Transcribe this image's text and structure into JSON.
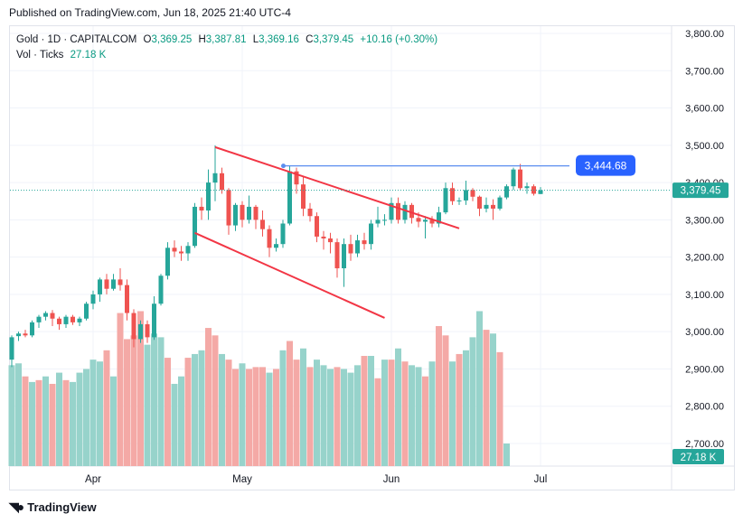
{
  "header": {
    "published": "Published on TradingView.com, Jun 18, 2025 21:40 UTC-4"
  },
  "legend": {
    "symbol": "Gold · 1D · CAPITALCOM",
    "o_label": "O",
    "o_value": "3,369.25",
    "h_label": "H",
    "h_value": "3,387.81",
    "l_label": "L",
    "l_value": "3,369.16",
    "c_label": "C",
    "c_value": "3,379.45",
    "change": "+10.16 (+0.30%)",
    "vol_label": "Vol · Ticks",
    "vol_value": "27.18 K"
  },
  "footer": {
    "brand": "TradingView",
    "logo_icon": "tradingview-logo-icon"
  },
  "colors": {
    "up": "#26a69a",
    "down": "#ef5350",
    "up_vol": "#97d3cb",
    "down_vol": "#f4a9a6",
    "trendline": "#f23645",
    "level_line": "#5b8def",
    "price_badge": "#2962ff",
    "level_badge": "#2962ff",
    "vol_badge": "#26a69a"
  },
  "chart_data": {
    "type": "candlestick",
    "y_axis": {
      "ticks": [
        2700,
        2800,
        2900,
        3000,
        3100,
        3200,
        3300,
        3400,
        3500,
        3600,
        3700,
        3800
      ],
      "tick_labels": [
        "2,700.00",
        "2,800.00",
        "2,900.00",
        "3,000.00",
        "3,100.00",
        "3,200.00",
        "3,300.00",
        "3,400.00",
        "3,500.00",
        "3,600.00",
        "3,700.00",
        "3,800.00"
      ],
      "range": [
        2640,
        3830
      ]
    },
    "x_axis": {
      "labels": [
        "Apr",
        "May",
        "Jun",
        "Jul"
      ],
      "label_bar_index": [
        12,
        34,
        56,
        78
      ]
    },
    "bars_total": 86,
    "last_price": 3379.45,
    "last_price_label": "3,379.45",
    "level": {
      "value": 3444.68,
      "label": "3,444.68",
      "from_bar": 39,
      "to_bar": 74
    },
    "volume_label": "27.18 K",
    "trendlines": [
      {
        "from": [
          30,
          3495
        ],
        "to": [
          66,
          3277
        ]
      },
      {
        "from": [
          27,
          3265
        ],
        "to": [
          55,
          3037
        ]
      }
    ],
    "candles": [
      {
        "o": 2925,
        "h": 2990,
        "l": 2905,
        "c": 2985
      },
      {
        "o": 2988,
        "h": 3000,
        "l": 2975,
        "c": 2995
      },
      {
        "o": 2995,
        "h": 3005,
        "l": 2985,
        "c": 2990
      },
      {
        "o": 2990,
        "h": 3030,
        "l": 2985,
        "c": 3025
      },
      {
        "o": 3025,
        "h": 3045,
        "l": 3010,
        "c": 3040
      },
      {
        "o": 3040,
        "h": 3055,
        "l": 3030,
        "c": 3050
      },
      {
        "o": 3050,
        "h": 3058,
        "l": 3015,
        "c": 3035
      },
      {
        "o": 3035,
        "h": 3040,
        "l": 3005,
        "c": 3020
      },
      {
        "o": 3020,
        "h": 3045,
        "l": 3010,
        "c": 3040
      },
      {
        "o": 3040,
        "h": 3045,
        "l": 3018,
        "c": 3025
      },
      {
        "o": 3025,
        "h": 3040,
        "l": 3015,
        "c": 3035
      },
      {
        "o": 3035,
        "h": 3080,
        "l": 3030,
        "c": 3075
      },
      {
        "o": 3075,
        "h": 3110,
        "l": 3060,
        "c": 3100
      },
      {
        "o": 3100,
        "h": 3145,
        "l": 3080,
        "c": 3140
      },
      {
        "o": 3140,
        "h": 3155,
        "l": 3100,
        "c": 3115
      },
      {
        "o": 3115,
        "h": 3155,
        "l": 3110,
        "c": 3140
      },
      {
        "o": 3140,
        "h": 3170,
        "l": 3110,
        "c": 3125
      },
      {
        "o": 3125,
        "h": 3140,
        "l": 3030,
        "c": 3050
      },
      {
        "o": 3050,
        "h": 3060,
        "l": 2958,
        "c": 2980
      },
      {
        "o": 2980,
        "h": 3030,
        "l": 2970,
        "c": 3020
      },
      {
        "o": 3020,
        "h": 3030,
        "l": 2970,
        "c": 2985
      },
      {
        "o": 2985,
        "h": 3095,
        "l": 2978,
        "c": 3075
      },
      {
        "o": 3075,
        "h": 3155,
        "l": 3070,
        "c": 3150
      },
      {
        "o": 3150,
        "h": 3240,
        "l": 3140,
        "c": 3225
      },
      {
        "o": 3225,
        "h": 3245,
        "l": 3200,
        "c": 3215
      },
      {
        "o": 3215,
        "h": 3230,
        "l": 3190,
        "c": 3210
      },
      {
        "o": 3210,
        "h": 3240,
        "l": 3190,
        "c": 3230
      },
      {
        "o": 3230,
        "h": 3345,
        "l": 3225,
        "c": 3335
      },
      {
        "o": 3335,
        "h": 3360,
        "l": 3300,
        "c": 3325
      },
      {
        "o": 3325,
        "h": 3435,
        "l": 3300,
        "c": 3400
      },
      {
        "o": 3400,
        "h": 3500,
        "l": 3350,
        "c": 3425
      },
      {
        "o": 3425,
        "h": 3440,
        "l": 3370,
        "c": 3380
      },
      {
        "o": 3380,
        "h": 3385,
        "l": 3260,
        "c": 3285
      },
      {
        "o": 3285,
        "h": 3345,
        "l": 3270,
        "c": 3340
      },
      {
        "o": 3340,
        "h": 3350,
        "l": 3280,
        "c": 3300
      },
      {
        "o": 3300,
        "h": 3365,
        "l": 3290,
        "c": 3335
      },
      {
        "o": 3335,
        "h": 3340,
        "l": 3275,
        "c": 3300
      },
      {
        "o": 3300,
        "h": 3325,
        "l": 3255,
        "c": 3275
      },
      {
        "o": 3275,
        "h": 3285,
        "l": 3200,
        "c": 3225
      },
      {
        "o": 3225,
        "h": 3250,
        "l": 3215,
        "c": 3235
      },
      {
        "o": 3235,
        "h": 3300,
        "l": 3225,
        "c": 3290
      },
      {
        "o": 3290,
        "h": 3445,
        "l": 3285,
        "c": 3430
      },
      {
        "o": 3430,
        "h": 3440,
        "l": 3370,
        "c": 3395
      },
      {
        "o": 3395,
        "h": 3415,
        "l": 3310,
        "c": 3330
      },
      {
        "o": 3330,
        "h": 3345,
        "l": 3295,
        "c": 3310
      },
      {
        "o": 3310,
        "h": 3320,
        "l": 3240,
        "c": 3255
      },
      {
        "o": 3255,
        "h": 3270,
        "l": 3220,
        "c": 3250
      },
      {
        "o": 3250,
        "h": 3265,
        "l": 3210,
        "c": 3240
      },
      {
        "o": 3240,
        "h": 3250,
        "l": 3145,
        "c": 3170
      },
      {
        "o": 3170,
        "h": 3250,
        "l": 3120,
        "c": 3235
      },
      {
        "o": 3235,
        "h": 3260,
        "l": 3190,
        "c": 3210
      },
      {
        "o": 3210,
        "h": 3260,
        "l": 3200,
        "c": 3245
      },
      {
        "o": 3245,
        "h": 3265,
        "l": 3220,
        "c": 3235
      },
      {
        "o": 3235,
        "h": 3300,
        "l": 3220,
        "c": 3290
      },
      {
        "o": 3290,
        "h": 3335,
        "l": 3280,
        "c": 3300
      },
      {
        "o": 3300,
        "h": 3315,
        "l": 3285,
        "c": 3300
      },
      {
        "o": 3300,
        "h": 3360,
        "l": 3290,
        "c": 3345
      },
      {
        "o": 3345,
        "h": 3360,
        "l": 3290,
        "c": 3300
      },
      {
        "o": 3300,
        "h": 3350,
        "l": 3290,
        "c": 3340
      },
      {
        "o": 3340,
        "h": 3345,
        "l": 3290,
        "c": 3305
      },
      {
        "o": 3305,
        "h": 3320,
        "l": 3280,
        "c": 3295
      },
      {
        "o": 3295,
        "h": 3310,
        "l": 3250,
        "c": 3300
      },
      {
        "o": 3300,
        "h": 3310,
        "l": 3280,
        "c": 3290
      },
      {
        "o": 3290,
        "h": 3335,
        "l": 3280,
        "c": 3320
      },
      {
        "o": 3320,
        "h": 3400,
        "l": 3315,
        "c": 3385
      },
      {
        "o": 3385,
        "h": 3400,
        "l": 3340,
        "c": 3350
      },
      {
        "o": 3350,
        "h": 3360,
        "l": 3340,
        "c": 3352
      },
      {
        "o": 3352,
        "h": 3405,
        "l": 3340,
        "c": 3380
      },
      {
        "o": 3380,
        "h": 3385,
        "l": 3350,
        "c": 3362
      },
      {
        "o": 3362,
        "h": 3365,
        "l": 3310,
        "c": 3330
      },
      {
        "o": 3330,
        "h": 3360,
        "l": 3320,
        "c": 3340
      },
      {
        "o": 3340,
        "h": 3355,
        "l": 3300,
        "c": 3330
      },
      {
        "o": 3330,
        "h": 3365,
        "l": 3325,
        "c": 3360
      },
      {
        "o": 3360,
        "h": 3395,
        "l": 3355,
        "c": 3390
      },
      {
        "o": 3390,
        "h": 3440,
        "l": 3380,
        "c": 3435
      },
      {
        "o": 3435,
        "h": 3450,
        "l": 3380,
        "c": 3385
      },
      {
        "o": 3385,
        "h": 3400,
        "l": 3370,
        "c": 3390
      },
      {
        "o": 3390,
        "h": 3395,
        "l": 3365,
        "c": 3370
      },
      {
        "o": 3369.25,
        "h": 3387.81,
        "l": 3369.16,
        "c": 3379.45
      }
    ],
    "volume": [
      {
        "v": 2910,
        "d": false
      },
      {
        "v": 2915,
        "d": false
      },
      {
        "v": 2880,
        "d": true
      },
      {
        "v": 2865,
        "d": false
      },
      {
        "v": 2870,
        "d": true
      },
      {
        "v": 2880,
        "d": false
      },
      {
        "v": 2860,
        "d": true
      },
      {
        "v": 2890,
        "d": false
      },
      {
        "v": 2870,
        "d": true
      },
      {
        "v": 2865,
        "d": false
      },
      {
        "v": 2890,
        "d": false
      },
      {
        "v": 2900,
        "d": false
      },
      {
        "v": 2925,
        "d": false
      },
      {
        "v": 2920,
        "d": false
      },
      {
        "v": 2950,
        "d": true
      },
      {
        "v": 2880,
        "d": false
      },
      {
        "v": 3050,
        "d": true
      },
      {
        "v": 2980,
        "d": true
      },
      {
        "v": 2990,
        "d": true
      },
      {
        "v": 3055,
        "d": true
      },
      {
        "v": 2965,
        "d": false
      },
      {
        "v": 2995,
        "d": false
      },
      {
        "v": 2985,
        "d": false
      },
      {
        "v": 2930,
        "d": true
      },
      {
        "v": 2860,
        "d": false
      },
      {
        "v": 2880,
        "d": false
      },
      {
        "v": 2930,
        "d": true
      },
      {
        "v": 2940,
        "d": false
      },
      {
        "v": 2950,
        "d": false
      },
      {
        "v": 3010,
        "d": true
      },
      {
        "v": 2990,
        "d": true
      },
      {
        "v": 2940,
        "d": false
      },
      {
        "v": 2925,
        "d": true
      },
      {
        "v": 2900,
        "d": true
      },
      {
        "v": 2915,
        "d": false
      },
      {
        "v": 2900,
        "d": true
      },
      {
        "v": 2905,
        "d": true
      },
      {
        "v": 2905,
        "d": true
      },
      {
        "v": 2890,
        "d": false
      },
      {
        "v": 2900,
        "d": true
      },
      {
        "v": 2950,
        "d": false
      },
      {
        "v": 2975,
        "d": true
      },
      {
        "v": 2925,
        "d": true
      },
      {
        "v": 2955,
        "d": false
      },
      {
        "v": 2905,
        "d": true
      },
      {
        "v": 2925,
        "d": false
      },
      {
        "v": 2910,
        "d": false
      },
      {
        "v": 2900,
        "d": false
      },
      {
        "v": 2905,
        "d": true
      },
      {
        "v": 2900,
        "d": false
      },
      {
        "v": 2890,
        "d": false
      },
      {
        "v": 2910,
        "d": false
      },
      {
        "v": 2935,
        "d": true
      },
      {
        "v": 2935,
        "d": false
      },
      {
        "v": 2875,
        "d": true
      },
      {
        "v": 2925,
        "d": false
      },
      {
        "v": 2925,
        "d": true
      },
      {
        "v": 2955,
        "d": false
      },
      {
        "v": 2920,
        "d": true
      },
      {
        "v": 2910,
        "d": false
      },
      {
        "v": 2905,
        "d": false
      },
      {
        "v": 2880,
        "d": true
      },
      {
        "v": 2920,
        "d": false
      },
      {
        "v": 3015,
        "d": true
      },
      {
        "v": 2990,
        "d": true
      },
      {
        "v": 2920,
        "d": false
      },
      {
        "v": 2940,
        "d": true
      },
      {
        "v": 2950,
        "d": false
      },
      {
        "v": 2985,
        "d": false
      },
      {
        "v": 3055,
        "d": false
      },
      {
        "v": 3005,
        "d": true
      },
      {
        "v": 2995,
        "d": false
      },
      {
        "v": 2945,
        "d": true
      },
      {
        "v": 2700,
        "d": false
      }
    ]
  }
}
